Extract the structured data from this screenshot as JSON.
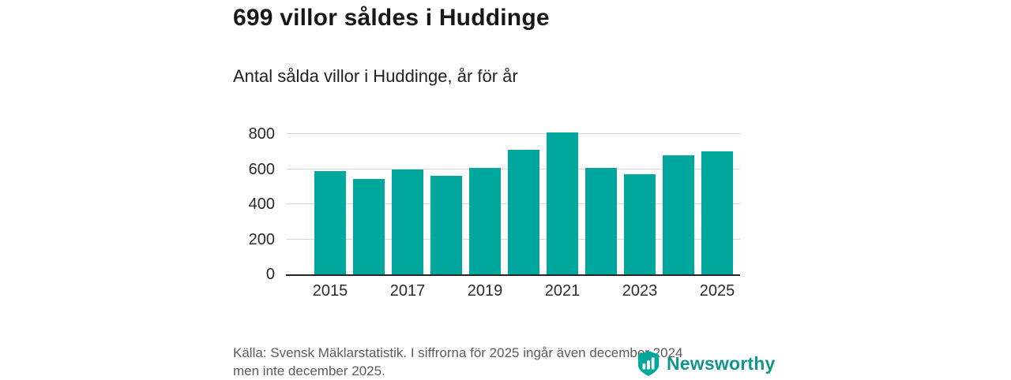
{
  "title": "699 villor såldes i Huddinge",
  "subtitle": "Antal sålda villor i Huddinge, år för år",
  "footer": {
    "line1": "Källa: Svensk Mäklarstatistik. I siffrorna för 2025 ingår även december 2024",
    "line2": "men inte december 2025."
  },
  "brand": {
    "name": "Newsworthy",
    "accent": "#00a79c",
    "wordmark_color": "#11948c"
  },
  "chart_data": {
    "type": "bar",
    "title": "Antal sålda villor i Huddinge, år för år",
    "categories": [
      "2015",
      "2016",
      "2017",
      "2018",
      "2019",
      "2020",
      "2021",
      "2022",
      "2023",
      "2024",
      "2025"
    ],
    "values": [
      590,
      545,
      600,
      560,
      605,
      710,
      810,
      605,
      570,
      680,
      699
    ],
    "x_tick_labels": [
      "2015",
      "2017",
      "2019",
      "2021",
      "2023",
      "2025"
    ],
    "yticks": [
      0,
      200,
      400,
      600,
      800
    ],
    "ylim": [
      0,
      810
    ],
    "xlabel": "",
    "ylabel": "",
    "grid": "horizontal",
    "legend": "none",
    "bar_color": "#00a79c"
  }
}
